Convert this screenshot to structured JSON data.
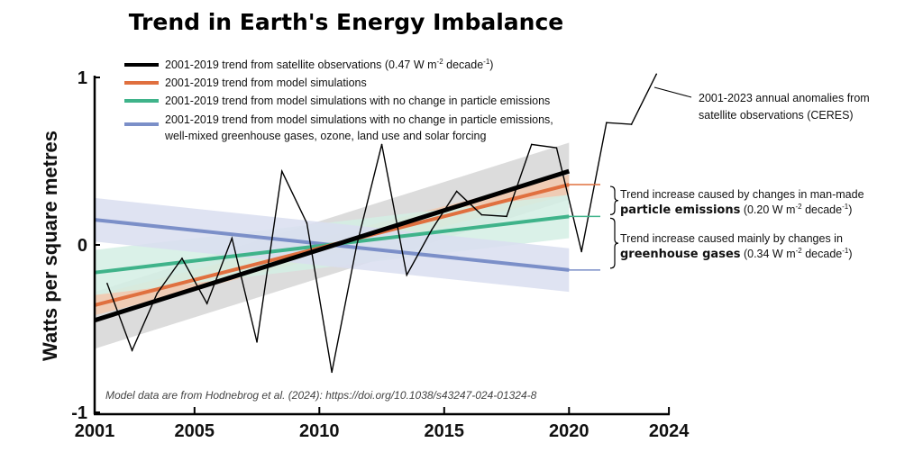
{
  "chart_data": {
    "type": "line",
    "title": "Trend in Earth's Energy Imbalance",
    "ylabel": "Watts per square metres",
    "xlabel": "",
    "xlim": [
      2001,
      2024
    ],
    "ylim": [
      -1,
      1
    ],
    "x_ticks": [
      "2001",
      "2005",
      "2010",
      "2015",
      "2020",
      "2024"
    ],
    "y_ticks": [
      "1",
      "0",
      "-1"
    ],
    "grid": false,
    "legend_position": "top-left",
    "legend": [
      {
        "text": "2001-2019 trend from satellite observations (0.47 W m",
        "sup1": "-2",
        "mid": " decade",
        "sup2": "-1",
        "end": ")",
        "color": "#000000"
      },
      {
        "text": "2001-2019 trend from model simulations",
        "color": "#e0703f"
      },
      {
        "text": "2001-2019 trend from model simulations with no change in particle emissions",
        "color": "#3fb38a"
      },
      {
        "text": "2001-2019 trend from model simulations with no change in particle emissions,",
        "text2": "well-mixed greenhouse gases, ozone, land use and solar forcing",
        "color": "#7b8fc8"
      }
    ],
    "anomalies": {
      "label_line1": "2001-2023 annual anomalies from",
      "label_line2": "satellite observations (CERES)",
      "color": "#000000",
      "x": [
        2001,
        2002,
        2003,
        2004,
        2005,
        2006,
        2007,
        2008,
        2009,
        2010,
        2011,
        2012,
        2013,
        2014,
        2015,
        2016,
        2017,
        2018,
        2019,
        2020,
        2021,
        2022,
        2023
      ],
      "y": [
        -0.23,
        -0.63,
        -0.29,
        -0.08,
        -0.35,
        0.04,
        -0.58,
        0.44,
        0.13,
        -0.76,
        0.0,
        0.6,
        -0.18,
        0.09,
        0.32,
        0.18,
        0.17,
        0.6,
        0.58,
        -0.04,
        0.73,
        0.72,
        1.02
      ]
    },
    "trends": [
      {
        "key": "satellite",
        "color": "#000000",
        "band_color": "#d6d6d6",
        "x": [
          2001,
          2020
        ],
        "y": [
          -0.45,
          0.44
        ],
        "band_low": [
          -0.62,
          0.27
        ],
        "band_high": [
          -0.28,
          0.61
        ]
      },
      {
        "key": "model",
        "color": "#e0703f",
        "band_color": "#f2c9ae",
        "x": [
          2001,
          2020
        ],
        "y": [
          -0.36,
          0.36
        ],
        "band_low": [
          -0.42,
          0.3
        ],
        "band_high": [
          -0.3,
          0.42
        ]
      },
      {
        "key": "no-particle",
        "color": "#3fb38a",
        "band_color": "#d3efe4",
        "x": [
          2001,
          2020
        ],
        "y": [
          -0.165,
          0.17
        ],
        "band_low": [
          -0.3,
          0.04
        ],
        "band_high": [
          -0.03,
          0.3
        ]
      },
      {
        "key": "no-forcing",
        "color": "#7b8fc8",
        "band_color": "#d9def0",
        "x": [
          2001,
          2020
        ],
        "y": [
          0.15,
          -0.15
        ],
        "band_low": [
          0.02,
          -0.28
        ],
        "band_high": [
          0.28,
          -0.02
        ]
      }
    ],
    "annotations": [
      {
        "line1": "Trend increase caused by changes in man-made",
        "bold": "particle emissions",
        "rest": " (0.20 W m",
        "sup1": "-2",
        "mid": " decade",
        "sup2": "-1",
        "end": ")",
        "from": 0.36,
        "to": 0.17
      },
      {
        "line1": "Trend increase caused mainly by changes in",
        "bold": "greenhouse gases",
        "rest": " (0.34 W m",
        "sup1": "-2",
        "mid": " decade",
        "sup2": "-1",
        "end": ")",
        "from": 0.17,
        "to": -0.15
      }
    ],
    "note": "Model data are from Hodnebrog et al. (2024): https://doi.org/10.1038/s43247-024-01324-8"
  }
}
